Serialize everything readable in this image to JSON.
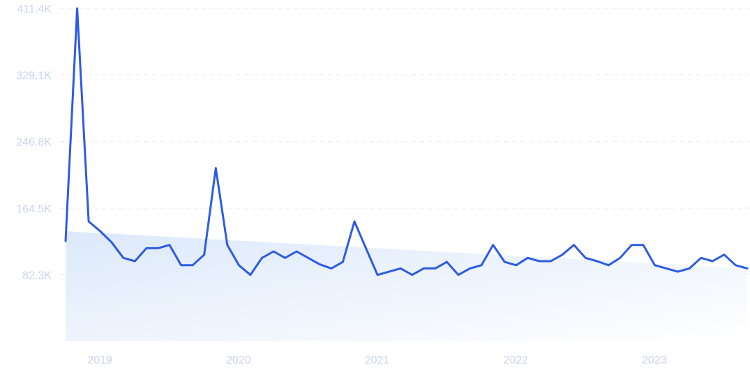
{
  "chart_data": {
    "type": "line",
    "title": "",
    "xlabel": "",
    "ylabel": "",
    "y_ticks": [
      "82.3K",
      "164.5K",
      "246.8K",
      "329.1K",
      "411.4K"
    ],
    "y_tick_values": [
      82300,
      164500,
      246800,
      329100,
      411400
    ],
    "ylim": [
      0,
      411400
    ],
    "x_ticks": [
      "2019",
      "2020",
      "2021",
      "2022",
      "2023"
    ],
    "x_tick_dates": [
      "2019-01",
      "2020-01",
      "2021-01",
      "2022-01",
      "2023-01"
    ],
    "xlim": [
      "2018-11",
      "2023-10"
    ],
    "grid": true,
    "legend": "none",
    "colors": {
      "line": "#2d5be3",
      "fill_top": "#dce9fb",
      "fill_bottom": "#ffffff",
      "grid": "#e4e8f1",
      "ticks": "#c9d4ee"
    },
    "series": [
      {
        "x": [
          "2018-11",
          "2018-12",
          "2019-01",
          "2019-02",
          "2019-03",
          "2019-04",
          "2019-05",
          "2019-06",
          "2019-07",
          "2019-08",
          "2019-09",
          "2019-10",
          "2019-11",
          "2019-12",
          "2020-01",
          "2020-02",
          "2020-03",
          "2020-04",
          "2020-05",
          "2020-06",
          "2020-07",
          "2020-08",
          "2020-09",
          "2020-10",
          "2020-11",
          "2020-12",
          "2021-01",
          "2021-02",
          "2021-03",
          "2021-04",
          "2021-05",
          "2021-06",
          "2021-07",
          "2021-08",
          "2021-09",
          "2021-10",
          "2021-11",
          "2021-12",
          "2022-01",
          "2022-02",
          "2022-03",
          "2022-04",
          "2022-05",
          "2022-06",
          "2022-07",
          "2022-08",
          "2022-09",
          "2022-10",
          "2022-11",
          "2022-12",
          "2023-01",
          "2023-02",
          "2023-03",
          "2023-04",
          "2023-05",
          "2023-06",
          "2023-07",
          "2023-08",
          "2023-09",
          "2023-10"
        ],
        "values": [
          124000,
          411400,
          148000,
          136000,
          122000,
          103000,
          99000,
          115000,
          115000,
          119000,
          94000,
          94000,
          107000,
          214000,
          119000,
          94000,
          82000,
          103000,
          111000,
          103000,
          111000,
          103000,
          95000,
          90000,
          98000,
          148000,
          115000,
          82000,
          86000,
          90000,
          82000,
          90000,
          90000,
          98000,
          82000,
          90000,
          94000,
          119000,
          98000,
          94000,
          103000,
          99000,
          99000,
          107000,
          119000,
          103000,
          99000,
          94000,
          103000,
          119000,
          119000,
          94000,
          90000,
          86000,
          90000,
          103000,
          99000,
          107000,
          94000,
          90000
        ]
      }
    ],
    "trend_area": {
      "start_value": 136000,
      "end_value": 90000
    }
  }
}
